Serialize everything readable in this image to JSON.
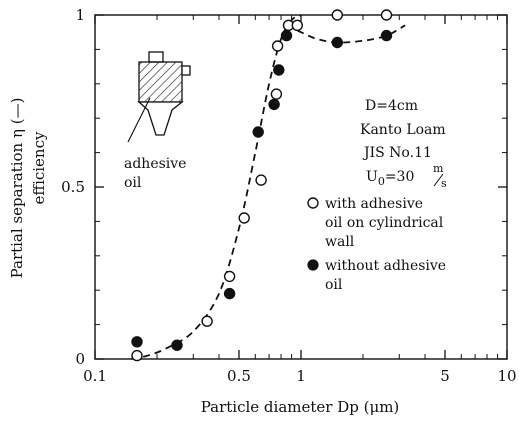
{
  "chart_data": {
    "type": "scatter",
    "title": "",
    "xlabel": "Particle diameter Dp  (μm)",
    "ylabel_lines": [
      "Partial separation  η  (—)",
      "efficiency"
    ],
    "x_scale": "log",
    "xlim": [
      0.1,
      10
    ],
    "ylim": [
      0,
      1
    ],
    "x_ticks": [
      {
        "value": 0.1,
        "label": "0.1"
      },
      {
        "value": 0.5,
        "label": "0.5"
      },
      {
        "value": 1,
        "label": "1"
      },
      {
        "value": 5,
        "label": "5"
      },
      {
        "value": 10,
        "label": "10"
      }
    ],
    "y_ticks": [
      {
        "value": 0,
        "label": "0"
      },
      {
        "value": 0.5,
        "label": "0.5"
      },
      {
        "value": 1,
        "label": "1"
      }
    ],
    "series": [
      {
        "name": "with adhesive oil on cylindrical wall",
        "marker": "open-circle",
        "x": [
          0.16,
          0.35,
          0.45,
          0.53,
          0.64,
          0.76,
          0.77,
          0.87,
          0.96,
          1.5,
          2.6
        ],
        "y": [
          0.01,
          0.11,
          0.24,
          0.41,
          0.52,
          0.77,
          0.91,
          0.97,
          0.97,
          1.0,
          1.0
        ]
      },
      {
        "name": "without adhesive oil",
        "marker": "filled-circle",
        "x": [
          0.16,
          0.25,
          0.45,
          0.62,
          0.74,
          0.78,
          0.85,
          1.5,
          2.6
        ],
        "y": [
          0.05,
          0.04,
          0.19,
          0.66,
          0.74,
          0.84,
          0.94,
          0.92,
          0.94
        ]
      }
    ],
    "fit_curves": [
      {
        "style": "dashed",
        "x": [
          0.15,
          0.18,
          0.22,
          0.3,
          0.4,
          0.5,
          0.6,
          0.7,
          0.8,
          0.9,
          1.0
        ],
        "y": [
          0.0,
          0.01,
          0.03,
          0.08,
          0.19,
          0.38,
          0.6,
          0.8,
          0.93,
          0.985,
          1.0
        ]
      },
      {
        "style": "dashed",
        "x": [
          0.85,
          1.0,
          1.2,
          1.5,
          2.0,
          2.6,
          3.2
        ],
        "y": [
          0.97,
          0.95,
          0.93,
          0.92,
          0.925,
          0.94,
          0.97
        ]
      }
    ],
    "annotations": {
      "conditions": [
        "D=4cm",
        "Kanto Loam",
        "JIS No.11"
      ],
      "velocity_prefix": "U",
      "velocity_sub": "0",
      "velocity_eq": "=30",
      "velocity_unit_top": "m",
      "velocity_unit_bottom": "s",
      "legend_open": [
        "with adhesive",
        "oil on cylindrical",
        "wall"
      ],
      "legend_filled": [
        "without adhesive",
        "oil"
      ],
      "inset_label": [
        "adhesive",
        "oil"
      ]
    },
    "grid": false,
    "legend_position": "middle-right"
  }
}
